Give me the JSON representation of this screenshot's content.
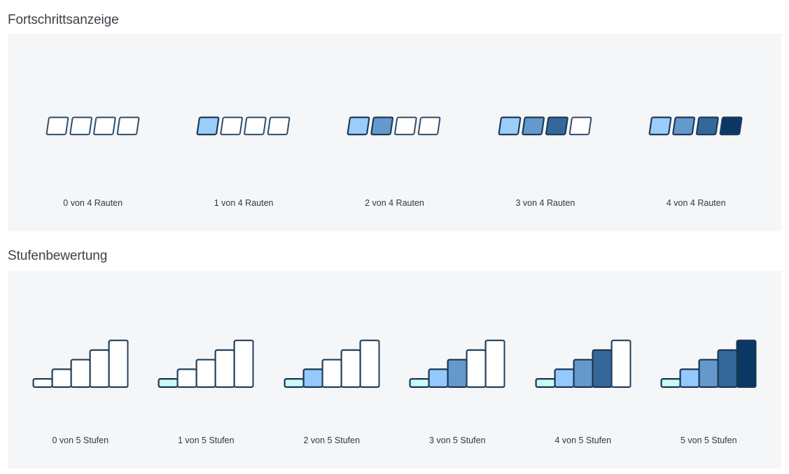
{
  "sections": [
    {
      "title": "Fortschrittsanzeige",
      "shape": "diamonds",
      "total": 4,
      "unit": "Rauten",
      "items": [
        {
          "value": 0,
          "label": "0 von 4 Rauten"
        },
        {
          "value": 1,
          "label": "1 von 4 Rauten"
        },
        {
          "value": 2,
          "label": "2 von 4 Rauten"
        },
        {
          "value": 3,
          "label": "3 von 4 Rauten"
        },
        {
          "value": 4,
          "label": "4 von 4 Rauten"
        }
      ],
      "fill_levels": [
        "#9bcdfb",
        "#6598cb",
        "#34689a",
        "#0c3866"
      ],
      "empty_fill": "#ffffff",
      "outline_filled": "#1d3b57",
      "outline_empty": "#2e4d69"
    },
    {
      "title": "Stufenbewertung",
      "shape": "steps",
      "total": 5,
      "unit": "Stufen",
      "items": [
        {
          "value": 0,
          "label": "0 von 5 Stufen"
        },
        {
          "value": 1,
          "label": "1 von 5 Stufen"
        },
        {
          "value": 2,
          "label": "2 von 5 Stufen"
        },
        {
          "value": 3,
          "label": "3 von 5 Stufen"
        },
        {
          "value": 4,
          "label": "4 von 5 Stufen"
        },
        {
          "value": 5,
          "label": "5 von 5 Stufen"
        }
      ],
      "fill_levels": [
        "#cbf9f6",
        "#93c9fc",
        "#6598cb",
        "#34689a",
        "#0c3866"
      ],
      "empty_fill": "#ffffff",
      "outline_filled": "#1b3752",
      "outline_empty": "#22405c"
    }
  ],
  "colors": {
    "page_background": "#ffffff",
    "panel_background": "#f4f6f8",
    "heading_text": "#3b4249",
    "label_text": "#333940"
  }
}
